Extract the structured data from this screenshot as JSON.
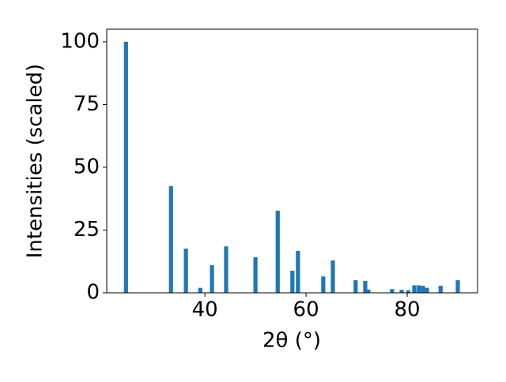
{
  "chart_data": {
    "type": "bar",
    "x_label": "2θ (°)",
    "y_label": "Intensities (scaled)",
    "x": [
      24.4,
      33.3,
      36.25,
      39.1,
      41.4,
      44.2,
      50.0,
      54.4,
      57.3,
      58.4,
      63.4,
      65.3,
      69.8,
      71.7,
      72.3,
      77.0,
      78.9,
      80.2,
      81.4,
      82.3,
      83.1,
      83.9,
      86.6,
      90.0
    ],
    "values": [
      100,
      42.5,
      17.6,
      2,
      11,
      18.5,
      14.2,
      32.7,
      8.8,
      16.7,
      6.5,
      12.9,
      5,
      4.7,
      1.3,
      1.5,
      1.2,
      1,
      3,
      3,
      2.8,
      2,
      2.8,
      5
    ],
    "color": "#1f77b4",
    "xlim": [
      20.6,
      93.9
    ],
    "ylim": [
      0,
      105
    ],
    "xticks": [
      40,
      60,
      80
    ],
    "yticks": [
      0,
      25,
      50,
      75,
      100
    ]
  }
}
